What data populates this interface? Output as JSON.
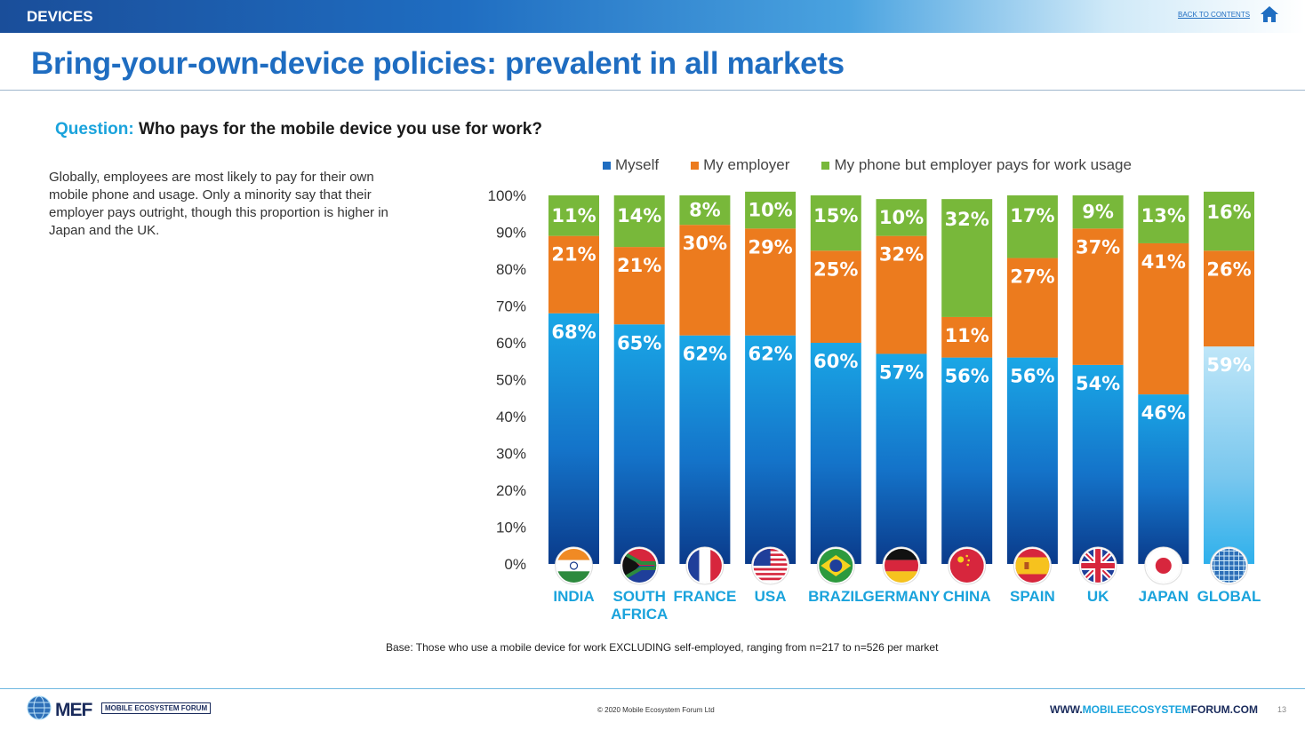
{
  "header": {
    "section": "DEVICES",
    "back_link": "BACK TO CONTENTS",
    "title": "Bring-your-own-device policies: prevalent in all markets"
  },
  "question": {
    "label": "Question:",
    "text": "Who pays for the mobile device you use for work?"
  },
  "summary": "Globally, employees are most likely to pay for their own mobile phone and usage. Only a minority say that their employer pays outright, though this proportion is higher in Japan and the UK.",
  "icons": {
    "home": "home-icon",
    "footer_logo": "globe-logo-icon"
  },
  "colors": {
    "myself": "#1a9fe0",
    "myself_dark": "#0a3d8f",
    "employer": "#ec7b1e",
    "work_usage": "#78b83a",
    "global_light": "#a9dcf5",
    "accent": "#1f6dc1",
    "label_blue": "#1aa3dc"
  },
  "chart_data": {
    "type": "bar",
    "stacked": true,
    "categories": [
      "INDIA",
      "SOUTH AFRICA",
      "FRANCE",
      "USA",
      "BRAZIL",
      "GERMANY",
      "CHINA",
      "SPAIN",
      "UK",
      "JAPAN",
      "GLOBAL"
    ],
    "series": [
      {
        "name": "Myself",
        "values": [
          68,
          65,
          62,
          62,
          60,
          57,
          56,
          56,
          54,
          46,
          59
        ]
      },
      {
        "name": "My employer",
        "values": [
          21,
          21,
          30,
          29,
          25,
          32,
          11,
          27,
          37,
          41,
          26
        ]
      },
      {
        "name": "My phone but employer pays for work usage",
        "values": [
          11,
          14,
          8,
          10,
          15,
          10,
          32,
          17,
          9,
          13,
          16
        ]
      }
    ],
    "ylim": [
      0,
      100
    ],
    "yticks": [
      "0%",
      "10%",
      "20%",
      "30%",
      "40%",
      "50%",
      "60%",
      "70%",
      "80%",
      "90%",
      "100%"
    ],
    "legend_position": "top",
    "grid": false,
    "title": "",
    "xlabel": "",
    "ylabel": ""
  },
  "base_note": "Base: Those who use a mobile device for work EXCLUDING self-employed, ranging from n=217 to n=526 per market",
  "footer": {
    "brand": "MEF",
    "tagline": "MOBILE ECOSYSTEM FORUM",
    "copyright": "© 2020 Mobile Ecosystem Forum Ltd",
    "website_prefix": "WWW.",
    "website_highlight": "MOBILEECOSYSTEM",
    "website_suffix": "FORUM.COM",
    "page_number": "13"
  }
}
